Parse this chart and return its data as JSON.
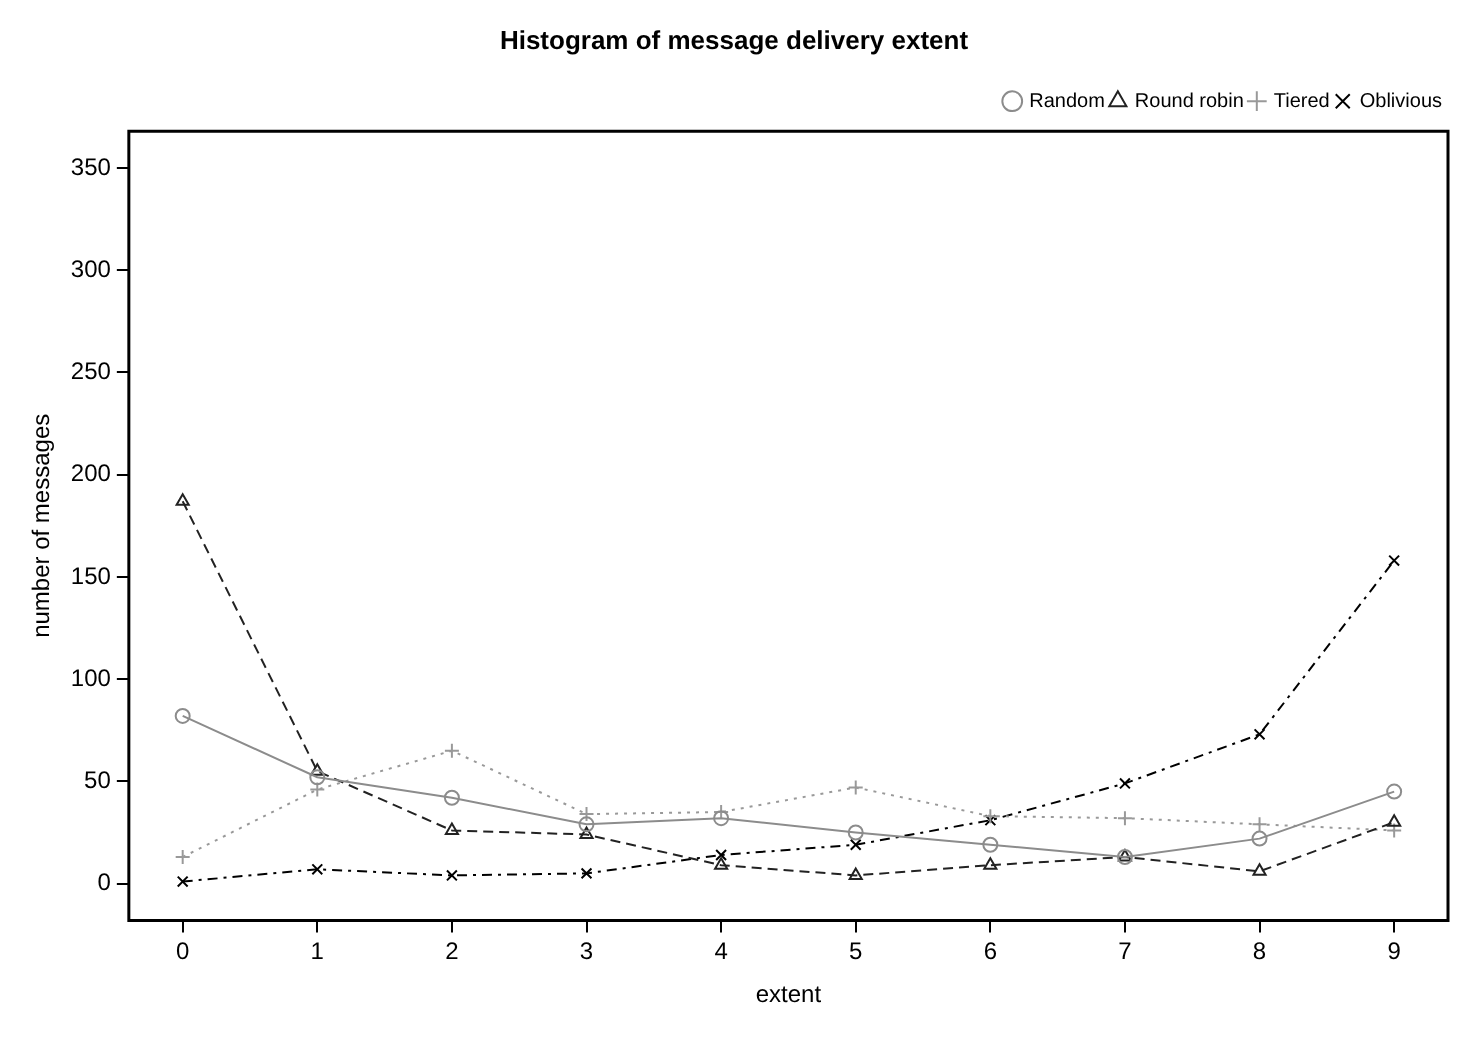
{
  "chart_data": {
    "type": "line",
    "title": "Histogram of message delivery extent",
    "xlabel": "extent",
    "ylabel": "number of messages",
    "x": [
      0,
      1,
      2,
      3,
      4,
      5,
      6,
      7,
      8,
      9
    ],
    "series": [
      {
        "name": "Random",
        "color": "#8c8c8c",
        "marker": "circle",
        "line_style": "solid",
        "values": [
          82,
          52,
          42,
          29,
          32,
          25,
          19,
          13,
          22,
          45
        ]
      },
      {
        "name": "Round robin",
        "color": "#222222",
        "marker": "triangle",
        "line_style": "dashed",
        "values": [
          187,
          55,
          26,
          24,
          9,
          4,
          9,
          13,
          6,
          30
        ]
      },
      {
        "name": "Tiered",
        "color": "#999999",
        "marker": "cross",
        "line_style": "dotted",
        "values": [
          13,
          46,
          65,
          34,
          35,
          47,
          33,
          32,
          29,
          26
        ]
      },
      {
        "name": "Oblivious",
        "color": "#000000",
        "marker": "x",
        "line_style": "dashdot",
        "values": [
          1,
          7,
          4,
          5,
          14,
          19,
          31,
          49,
          73,
          158
        ]
      }
    ],
    "xlim": [
      -0.4,
      9.4
    ],
    "xticks": [
      0,
      1,
      2,
      3,
      4,
      5,
      6,
      7,
      8,
      9
    ],
    "ylim": [
      -18,
      368
    ],
    "yticks": [
      0,
      50,
      100,
      150,
      200,
      250,
      300,
      350
    ],
    "grid": false,
    "legend": "top right"
  }
}
